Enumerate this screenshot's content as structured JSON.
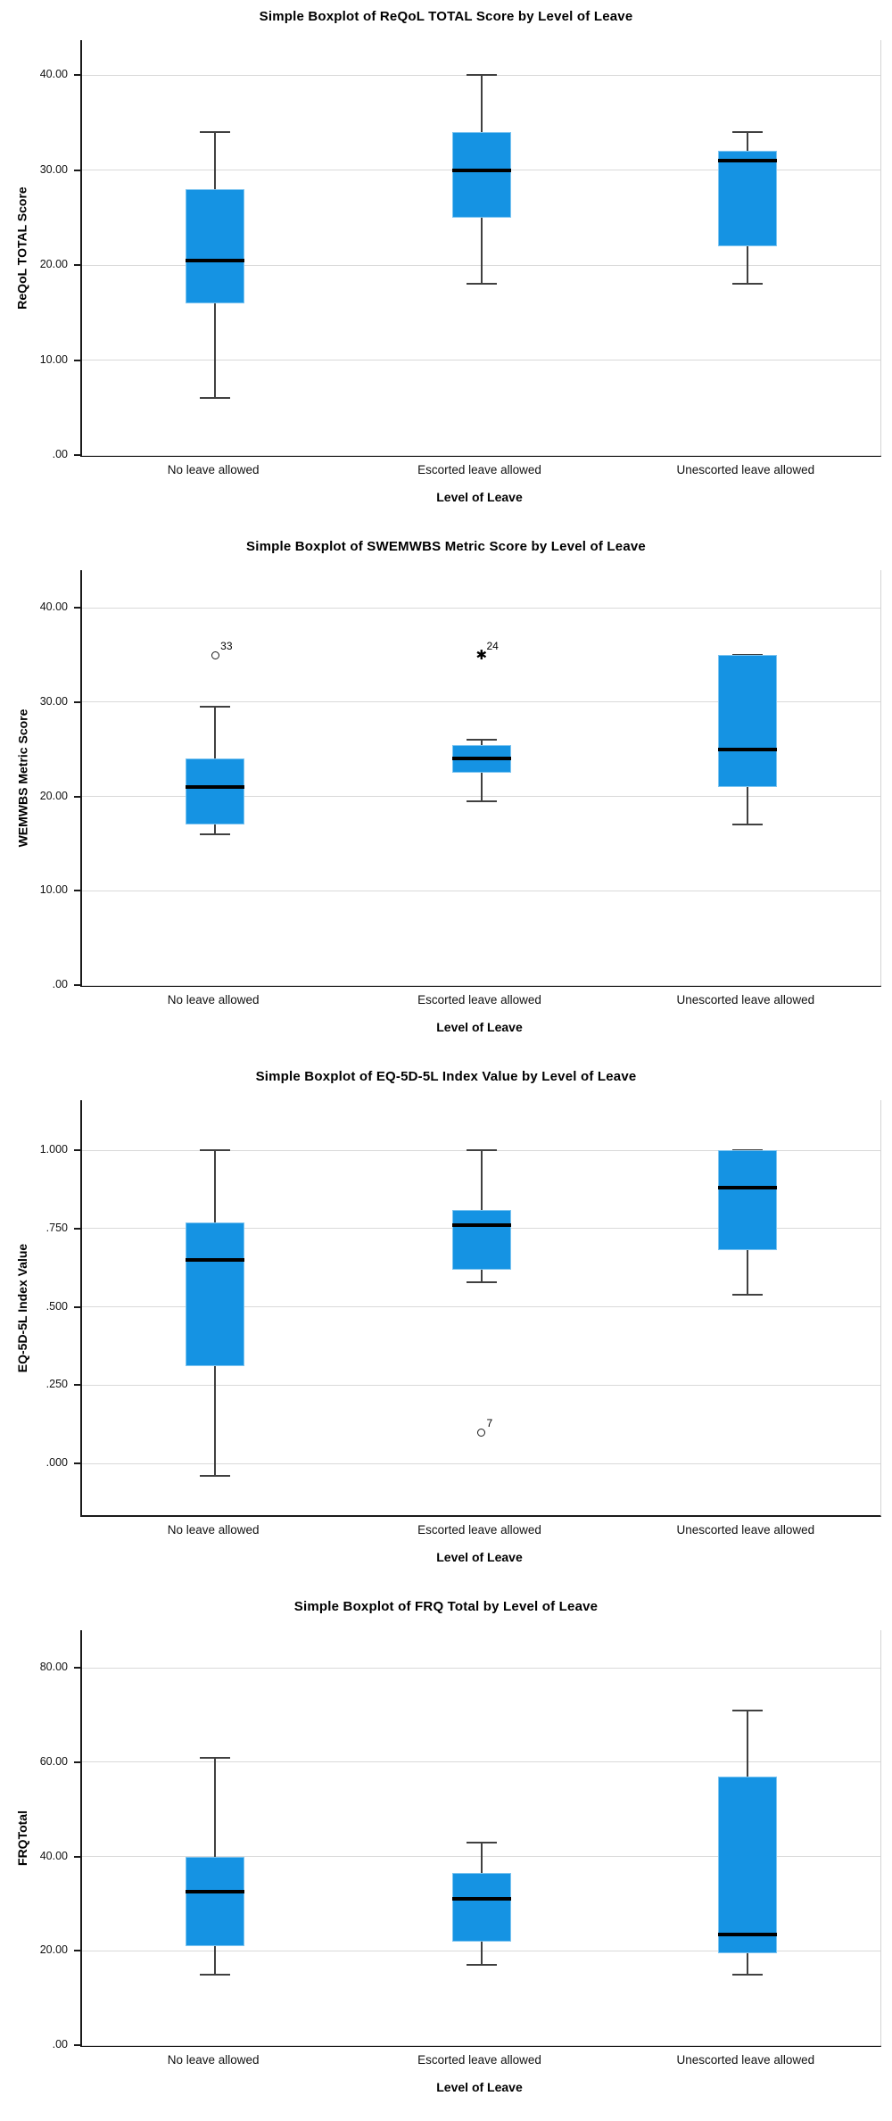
{
  "styles": {
    "box_fill": "#1593e3",
    "box_border": "#7cc4f0",
    "median_color": "#000000",
    "whisker_color": "#404040",
    "gridline_color": "#d9d9d9",
    "axis_color": "#1a1a1a"
  },
  "chart_data": [
    {
      "type": "box",
      "title": "Simple Boxplot of ReQoL TOTAL Score by Level of Leave",
      "ylabel": "ReQoL TOTAL Score",
      "xlabel": "Level of Leave",
      "categories": [
        "No leave allowed",
        "Escorted leave allowed",
        "Unescorted leave allowed"
      ],
      "yticks": [
        {
          "label": ".00",
          "value": 0
        },
        {
          "label": "10.00",
          "value": 10
        },
        {
          "label": "20.00",
          "value": 20
        },
        {
          "label": "30.00",
          "value": 30
        },
        {
          "label": "40.00",
          "value": 40
        }
      ],
      "ylim": [
        0,
        43.7
      ],
      "boxes": [
        {
          "category": "No leave allowed",
          "whisker_low": 6,
          "q1": 16,
          "median": 20.5,
          "q3": 28,
          "whisker_high": 34,
          "outliers": []
        },
        {
          "category": "Escorted leave allowed",
          "whisker_low": 18,
          "q1": 25,
          "median": 30,
          "q3": 34,
          "whisker_high": 40,
          "outliers": []
        },
        {
          "category": "Unescorted leave allowed",
          "whisker_low": 18,
          "q1": 22,
          "median": 31,
          "q3": 32,
          "whisker_high": 34,
          "outliers": []
        }
      ]
    },
    {
      "type": "box",
      "title": "Simple Boxplot of SWEMWBS Metric Score by Level of Leave",
      "ylabel": "WEMWBS Metric Score",
      "xlabel": "Level of Leave",
      "categories": [
        "No leave allowed",
        "Escorted leave allowed",
        "Unescorted leave allowed"
      ],
      "yticks": [
        {
          "label": ".00",
          "value": 0
        },
        {
          "label": "10.00",
          "value": 10
        },
        {
          "label": "20.00",
          "value": 20
        },
        {
          "label": "30.00",
          "value": 30
        },
        {
          "label": "40.00",
          "value": 40
        }
      ],
      "ylim": [
        0,
        44
      ],
      "boxes": [
        {
          "category": "No leave allowed",
          "whisker_low": 16,
          "q1": 17,
          "median": 21,
          "q3": 24,
          "whisker_high": 29.5,
          "outliers": [
            {
              "value": 35,
              "label": "33",
              "marker": "circle"
            }
          ]
        },
        {
          "category": "Escorted leave allowed",
          "whisker_low": 19.5,
          "q1": 22.5,
          "median": 24,
          "q3": 25.5,
          "whisker_high": 26,
          "outliers": [
            {
              "value": 35,
              "label": "24",
              "marker": "asterisk"
            }
          ]
        },
        {
          "category": "Unescorted leave allowed",
          "whisker_low": 17,
          "q1": 21,
          "median": 25,
          "q3": 35,
          "whisker_high": 35,
          "outliers": []
        }
      ]
    },
    {
      "type": "box",
      "title": "Simple Boxplot of EQ-5D-5L Index Value by Level of Leave",
      "ylabel": "EQ-5D-5L Index Value",
      "xlabel": "Level of Leave",
      "categories": [
        "No leave allowed",
        "Escorted leave allowed",
        "Unescorted leave allowed"
      ],
      "yticks": [
        {
          "label": ".000",
          "value": 0
        },
        {
          "label": ".250",
          "value": 0.25
        },
        {
          "label": ".500",
          "value": 0.5
        },
        {
          "label": ".750",
          "value": 0.75
        },
        {
          "label": "1.000",
          "value": 1.0
        }
      ],
      "ylim": [
        -0.165,
        1.16
      ],
      "boxes": [
        {
          "category": "No leave allowed",
          "whisker_low": -0.04,
          "q1": 0.31,
          "median": 0.65,
          "q3": 0.77,
          "whisker_high": 1.0,
          "outliers": []
        },
        {
          "category": "Escorted leave allowed",
          "whisker_low": 0.58,
          "q1": 0.62,
          "median": 0.76,
          "q3": 0.81,
          "whisker_high": 1.0,
          "outliers": [
            {
              "value": 0.1,
              "label": "7",
              "marker": "circle"
            }
          ]
        },
        {
          "category": "Unescorted leave allowed",
          "whisker_low": 0.54,
          "q1": 0.68,
          "median": 0.88,
          "q3": 1.0,
          "whisker_high": 1.0,
          "outliers": []
        }
      ]
    },
    {
      "type": "box",
      "title": "Simple Boxplot of FRQ Total by Level of Leave",
      "ylabel": "FRQTotal",
      "xlabel": "Level of Leave",
      "categories": [
        "No leave allowed",
        "Escorted leave allowed",
        "Unescorted leave allowed"
      ],
      "yticks": [
        {
          "label": ".00",
          "value": 0
        },
        {
          "label": "20.00",
          "value": 20
        },
        {
          "label": "40.00",
          "value": 40
        },
        {
          "label": "60.00",
          "value": 60
        },
        {
          "label": "80.00",
          "value": 80
        }
      ],
      "ylim": [
        0,
        88
      ],
      "boxes": [
        {
          "category": "No leave allowed",
          "whisker_low": 15,
          "q1": 21,
          "median": 32.5,
          "q3": 40,
          "whisker_high": 61,
          "outliers": []
        },
        {
          "category": "Escorted leave allowed",
          "whisker_low": 17,
          "q1": 22,
          "median": 31,
          "q3": 36.5,
          "whisker_high": 43,
          "outliers": []
        },
        {
          "category": "Unescorted leave allowed",
          "whisker_low": 15,
          "q1": 19.5,
          "median": 23.5,
          "q3": 57,
          "whisker_high": 71,
          "outliers": []
        }
      ]
    }
  ]
}
